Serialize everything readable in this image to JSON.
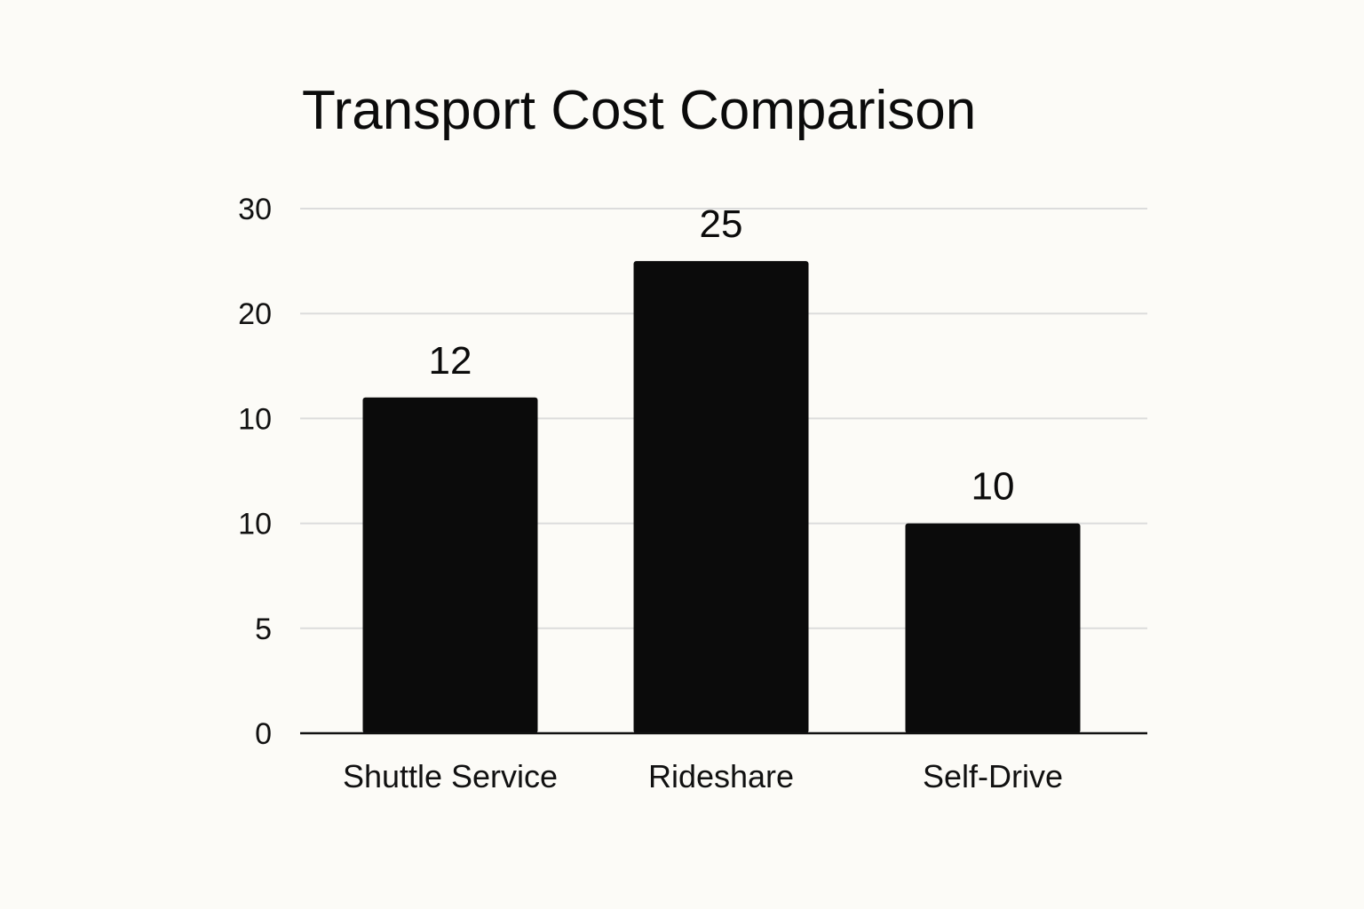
{
  "chart_data": {
    "type": "bar",
    "title": "Transport Cost Comparison",
    "xlabel": "",
    "ylabel": "",
    "categories": [
      "Shuttle Service",
      "Rideshare",
      "Self-Drive"
    ],
    "values": [
      12,
      25,
      10
    ],
    "data_labels": [
      "12",
      "25",
      "10"
    ],
    "y_tick_labels": [
      "0",
      "5",
      "10",
      "10",
      "20",
      "30"
    ],
    "grid": true,
    "legend": "none",
    "colors": {
      "bar": "#0b0b0b",
      "grid": "#dcdcdc",
      "axis": "#111111",
      "background": "#fcfbf7"
    }
  }
}
